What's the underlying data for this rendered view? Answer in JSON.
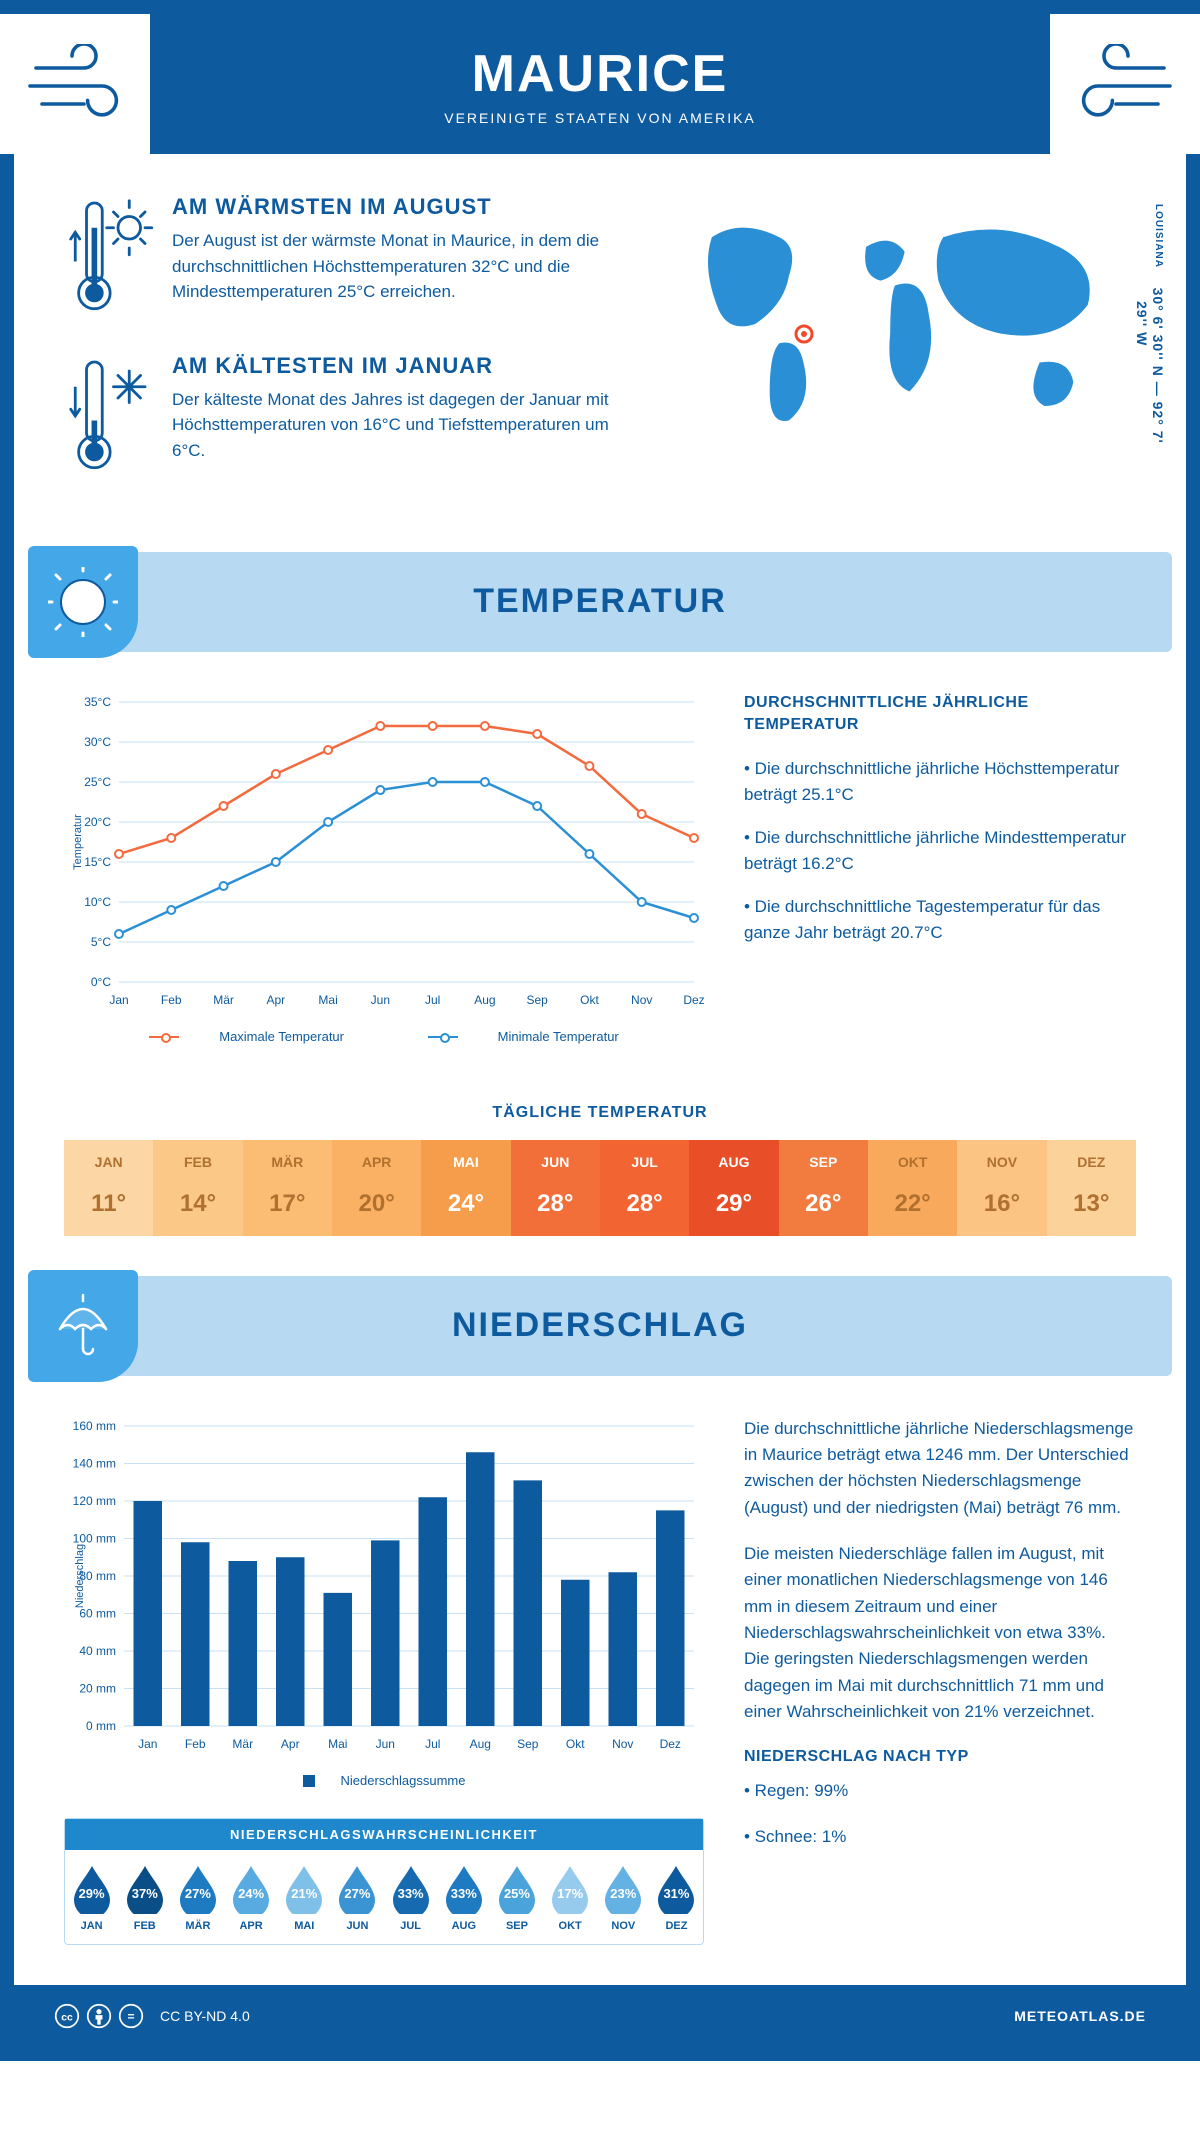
{
  "header": {
    "title": "MAURICE",
    "subtitle": "VEREINIGTE STAATEN VON AMERIKA"
  },
  "info": {
    "warm": {
      "title": "AM WÄRMSTEN IM AUGUST",
      "text": "Der August ist der wärmste Monat in Maurice, in dem die durchschnittlichen Höchsttemperaturen 32°C und die Mindesttemperaturen 25°C erreichen."
    },
    "cold": {
      "title": "AM KÄLTESTEN IM JANUAR",
      "text": "Der kälteste Monat des Jahres ist dagegen der Januar mit Höchsttemperaturen von 16°C und Tiefsttemperaturen um 6°C."
    },
    "coords": "30° 6' 30'' N — 92° 7' 29'' W",
    "region": "LOUISIANA"
  },
  "temperature": {
    "section_title": "TEMPERATUR",
    "annual_heading": "DURCHSCHNITTLICHE JÄHRLICHE TEMPERATUR",
    "bullets": [
      "• Die durchschnittliche jährliche Höchsttemperatur beträgt 25.1°C",
      "• Die durchschnittliche jährliche Mindesttemperatur beträgt 16.2°C",
      "• Die durchschnittliche Tagestemperatur für das ganze Jahr beträgt 20.7°C"
    ],
    "chart": {
      "type": "line",
      "ylabel": "Temperatur",
      "ylim": [
        0,
        35
      ],
      "ytick_step": 5,
      "yunit": "°C",
      "months": [
        "Jan",
        "Feb",
        "Mär",
        "Apr",
        "Mai",
        "Jun",
        "Jul",
        "Aug",
        "Sep",
        "Okt",
        "Nov",
        "Dez"
      ],
      "series": {
        "max": {
          "label": "Maximale Temperatur",
          "color": "#f26a3d",
          "values": [
            16,
            18,
            22,
            26,
            29,
            32,
            32,
            32,
            31,
            27,
            21,
            18
          ]
        },
        "min": {
          "label": "Minimale Temperatur",
          "color": "#2b8fd6",
          "values": [
            6,
            9,
            12,
            15,
            20,
            24,
            25,
            25,
            22,
            16,
            10,
            8
          ]
        }
      },
      "grid_color": "#c9e1f3",
      "axis_color": "#0d5a9e",
      "label_fontsize": 12,
      "marker_size": 4
    },
    "daily": {
      "title": "TÄGLICHE TEMPERATUR",
      "months": [
        "JAN",
        "FEB",
        "MÄR",
        "APR",
        "MAI",
        "JUN",
        "JUL",
        "AUG",
        "SEP",
        "OKT",
        "NOV",
        "DEZ"
      ],
      "values": [
        "11°",
        "14°",
        "17°",
        "20°",
        "24°",
        "28°",
        "28°",
        "29°",
        "26°",
        "22°",
        "16°",
        "13°"
      ],
      "bg_colors": [
        "#fcd7a5",
        "#fbc888",
        "#fbbd74",
        "#fab163",
        "#f69d4c",
        "#f26f3a",
        "#f26432",
        "#e84e27",
        "#f27b40",
        "#f9a95c",
        "#fbc483",
        "#fcd29b"
      ],
      "text_colors": [
        "#b0702f",
        "#b0702f",
        "#b0702f",
        "#b0702f",
        "#ffffff",
        "#ffffff",
        "#ffffff",
        "#ffffff",
        "#ffffff",
        "#b0702f",
        "#b0702f",
        "#b0702f"
      ]
    }
  },
  "precip": {
    "section_title": "NIEDERSCHLAG",
    "chart": {
      "type": "bar",
      "ylabel": "Niederschlag",
      "ylim": [
        0,
        160
      ],
      "ytick_step": 20,
      "yunit": " mm",
      "months": [
        "Jan",
        "Feb",
        "Mär",
        "Apr",
        "Mai",
        "Jun",
        "Jul",
        "Aug",
        "Sep",
        "Okt",
        "Nov",
        "Dez"
      ],
      "values": [
        120,
        98,
        88,
        90,
        71,
        99,
        122,
        146,
        131,
        78,
        82,
        115
      ],
      "bar_color": "#0d5a9e",
      "grid_color": "#c9e1f3",
      "legend_label": "Niederschlagssumme",
      "bar_width": 0.6
    },
    "paragraphs": [
      "Die durchschnittliche jährliche Niederschlagsmenge in Maurice beträgt etwa 1246 mm. Der Unterschied zwischen der höchsten Niederschlagsmenge (August) und der niedrigsten (Mai) beträgt 76 mm.",
      "Die meisten Niederschläge fallen im August, mit einer monatlichen Niederschlagsmenge von 146 mm in diesem Zeitraum und einer Niederschlagswahrscheinlichkeit von etwa 33%. Die geringsten Niederschlagsmengen werden dagegen im Mai mit durchschnittlich 71 mm und einer Wahrscheinlichkeit von 21% verzeichnet."
    ],
    "type_heading": "NIEDERSCHLAG NACH TYP",
    "type_bullets": [
      "• Regen: 99%",
      "• Schnee: 1%"
    ],
    "probability": {
      "title": "NIEDERSCHLAGSWAHRSCHEINLICHKEIT",
      "months": [
        "JAN",
        "FEB",
        "MÄR",
        "APR",
        "MAI",
        "JUN",
        "JUL",
        "AUG",
        "SEP",
        "OKT",
        "NOV",
        "DEZ"
      ],
      "values": [
        "29%",
        "37%",
        "27%",
        "24%",
        "21%",
        "27%",
        "33%",
        "33%",
        "25%",
        "17%",
        "23%",
        "31%"
      ],
      "colors": [
        "#0d5a9e",
        "#0a4e88",
        "#1f7bc1",
        "#57abe0",
        "#7fc0e9",
        "#3a93d2",
        "#156ab0",
        "#1f7bc1",
        "#4ba3dc",
        "#96cbed",
        "#64b2e3",
        "#0d5a9e"
      ]
    }
  },
  "footer": {
    "license": "CC BY-ND 4.0",
    "site": "METEOATLAS.DE"
  }
}
